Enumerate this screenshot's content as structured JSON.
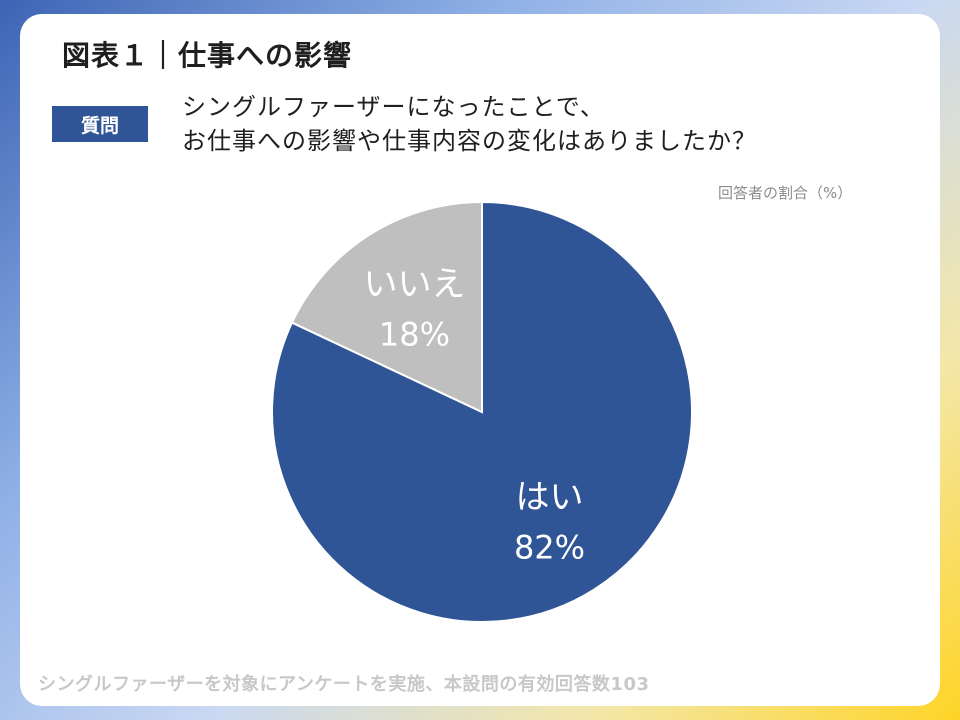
{
  "title": "図表１｜仕事への影響",
  "question": {
    "badge": "質問",
    "line1": "シングルファーザーになったことで、",
    "line2": "お仕事への影響や仕事内容の変化はありましたか？"
  },
  "unit_note": "回答者の割合（%）",
  "footer": "シングルファーザーを対象にアンケートを実施、本設問の有効回答数103",
  "colors": {
    "yes": "#2f5597",
    "no": "#bfbfbf",
    "badge": "#2f5597"
  },
  "chart_data": {
    "type": "pie",
    "title": "",
    "slices": [
      {
        "label": "はい",
        "value": 82,
        "value_label": "82%"
      },
      {
        "label": "いいえ",
        "value": 18,
        "value_label": "18%"
      }
    ],
    "start": "top",
    "direction": "clockwise"
  }
}
